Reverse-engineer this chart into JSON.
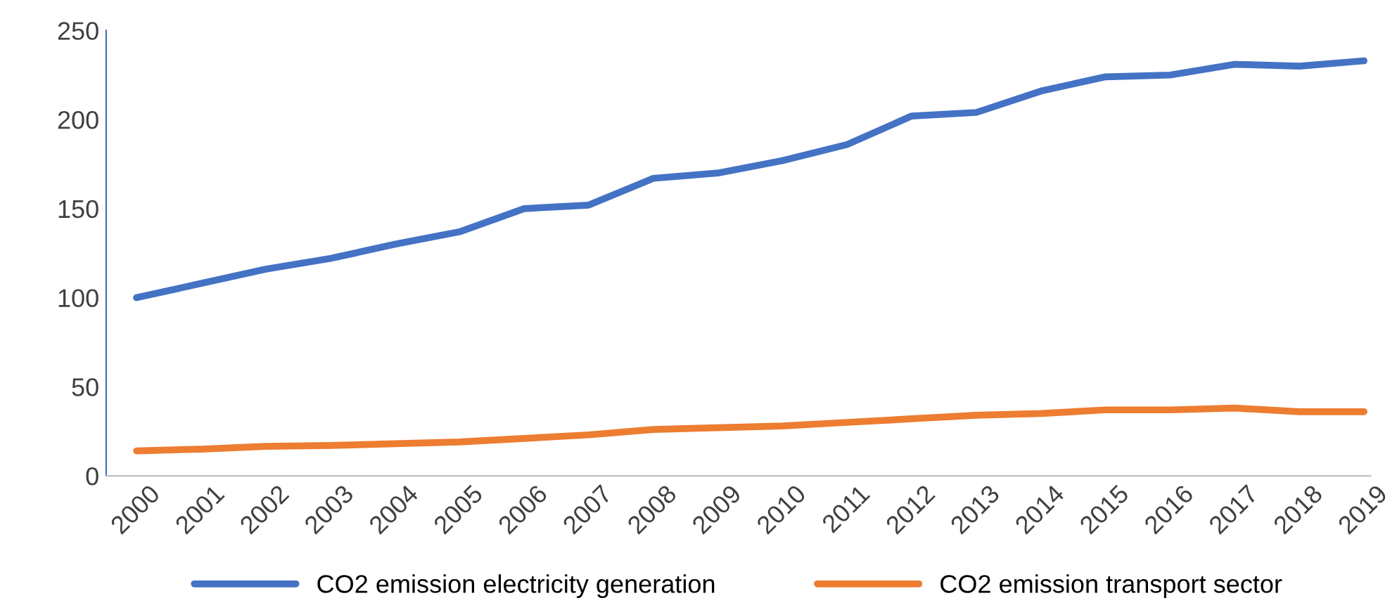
{
  "chart_data": {
    "type": "line",
    "categories": [
      "2000",
      "2001",
      "2002",
      "2003",
      "2004",
      "2005",
      "2006",
      "2007",
      "2008",
      "2009",
      "2010",
      "2011",
      "2012",
      "2013",
      "2014",
      "2015",
      "2016",
      "2017",
      "2018",
      "2019"
    ],
    "series": [
      {
        "name": "CO2 emission electricity generation",
        "color": "#4472c4",
        "values": [
          100,
          108,
          116,
          122,
          130,
          137,
          150,
          152,
          167,
          170,
          177,
          186,
          202,
          204,
          216,
          224,
          225,
          231,
          230,
          233
        ]
      },
      {
        "name": "CO2 emission transport sector",
        "color": "#ed7d31",
        "values": [
          14,
          15,
          16.5,
          17,
          18,
          19,
          21,
          23,
          26,
          27,
          28,
          30,
          32,
          34,
          35,
          37,
          37,
          38,
          36,
          36
        ]
      }
    ],
    "ylim": [
      0,
      250
    ],
    "yticks": [
      0,
      50,
      100,
      150,
      200,
      250
    ],
    "grid": false,
    "legend": "bottom",
    "marker": "none",
    "line_style": "solid"
  }
}
